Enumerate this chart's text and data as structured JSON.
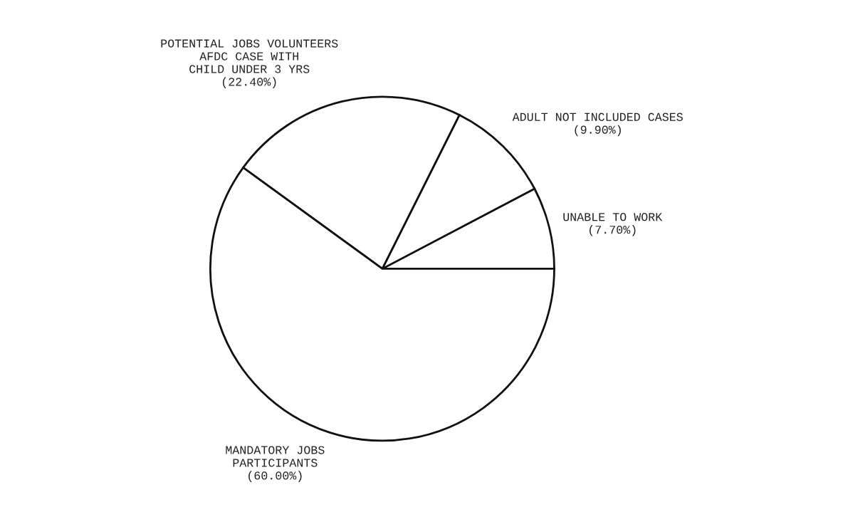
{
  "chart_data": {
    "type": "pie",
    "categories": [
      "UNABLE TO WORK",
      "ADULT NOT INCLUDED CASES",
      "POTENTIAL JOBS VOLUNTEERS\nAFDC CASE WITH\nCHILD UNDER 3 YRS",
      "MANDATORY JOBS\nPARTICIPANTS"
    ],
    "values": [
      7.7,
      9.9,
      22.4,
      60.0
    ],
    "value_labels": [
      "(7.70%)",
      "(9.90%)",
      "(22.40%)",
      "(60.00%)"
    ],
    "colors": [
      "#ffffff",
      "#ffffff",
      "#ffffff",
      "#ffffff"
    ]
  }
}
